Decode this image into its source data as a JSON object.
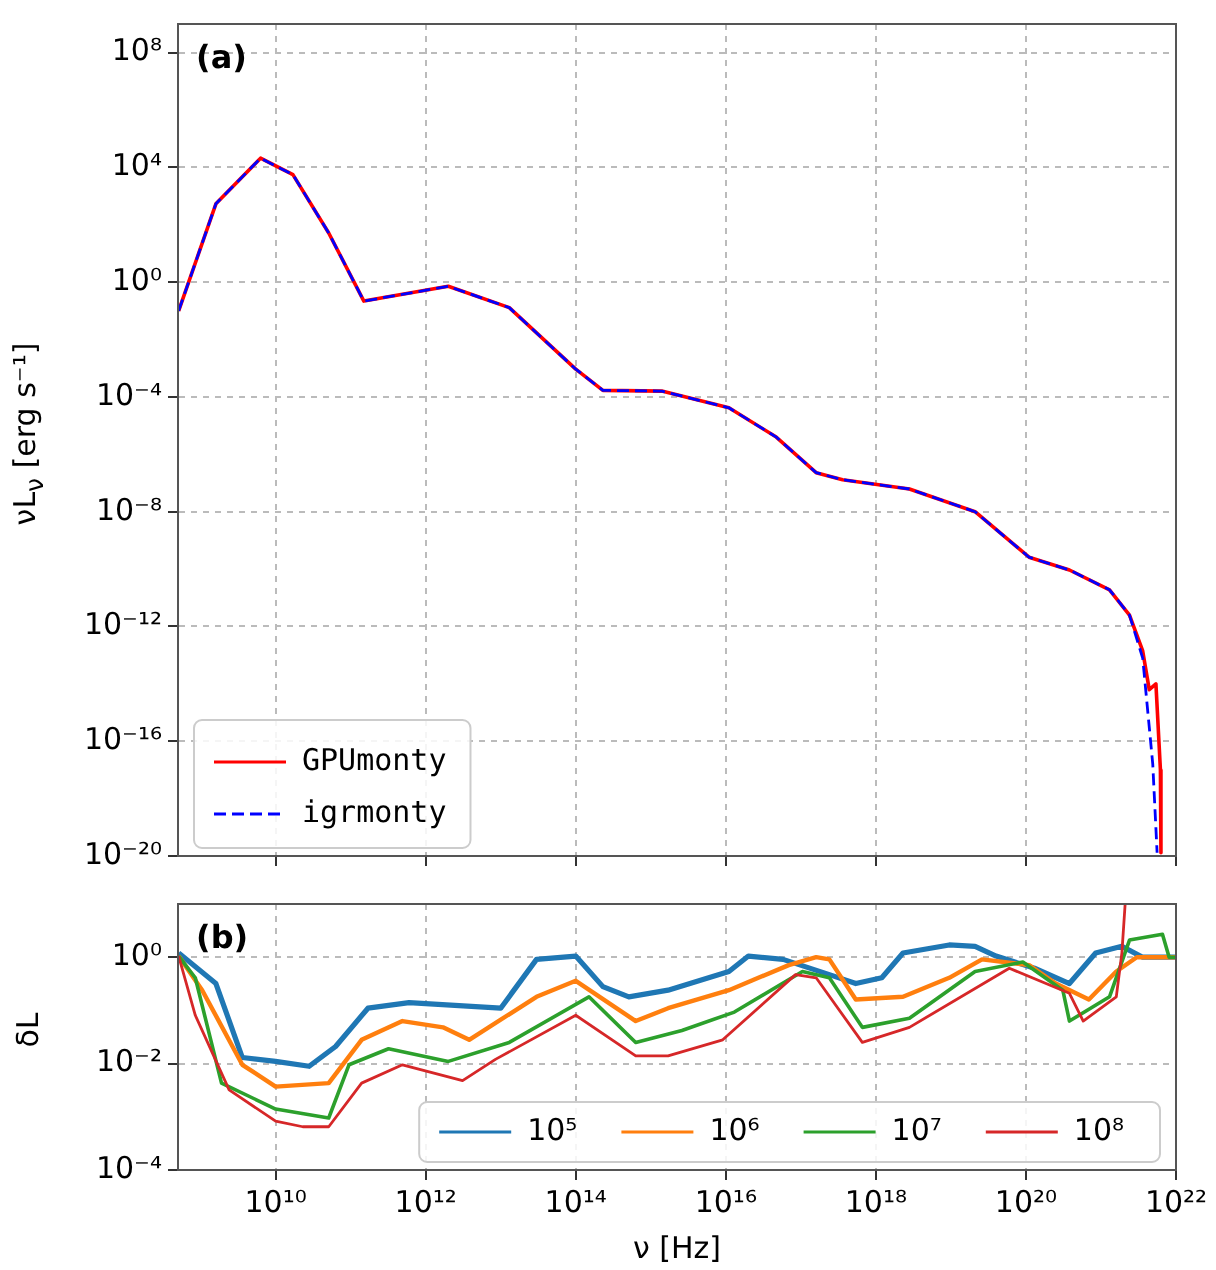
{
  "chart_data": [
    {
      "type": "line",
      "ylabel": "νL$_{ν}$ [erg s⁻¹]",
      "annotations": [
        "(a)"
      ],
      "log": "xy",
      "xlim": [
        500000000.0,
        1e+22
      ],
      "ylim": [
        1e-20,
        1000000000.0
      ],
      "xticks": [
        10000000000.0,
        1000000000000.0,
        100000000000000.0,
        1e+16,
        1e+18,
        1e+20,
        1e+22
      ],
      "yticks": [
        {
          "value": 1e-20,
          "label": "10⁻²⁰"
        },
        {
          "value": 1e-16,
          "label": "10⁻¹⁶"
        },
        {
          "value": 1e-12,
          "label": "10⁻¹²"
        },
        {
          "value": 1e-08,
          "label": "10⁻⁸"
        },
        {
          "value": 0.0001,
          "label": "10⁻⁴"
        },
        {
          "value": 1,
          "label": "10⁰"
        },
        {
          "value": 10000.0,
          "label": "10⁴"
        },
        {
          "value": 100000000.0,
          "label": "10⁸"
        }
      ],
      "tick_labels": "y",
      "grid": true,
      "legend": "bottom left",
      "series": [
        {
          "name": "GPUmonty",
          "color": "#ff0000",
          "line_style": "solid",
          "x": [
            510000000.0,
            1600000000.0,
            6300000000.0,
            17000000000.0,
            51000000000.0,
            150000000000.0,
            2000000000000.0,
            13000000000000.0,
            100000000000000.0,
            230000000000000.0,
            1400000000000000.0,
            1.1e+16,
            4.7e+16,
            1.6e+17,
            3.6e+17,
            2.8e+18,
            2.1e+19,
            1.1e+20,
            3.8e+20,
            1.3e+21,
            2.4e+21,
            3.6e+21,
            4.4e+21,
            5.4e+21,
            6.2e+21,
            6.3e+21
          ],
          "values": [
            0.1,
            540,
            21000.0,
            5600,
            52,
            0.22,
            0.72,
            0.13,
            0.00093,
            0.00017,
            0.00016,
            4.2e-05,
            4e-06,
            2.3e-07,
            1.3e-07,
            6.2e-08,
            1e-08,
            2.6e-10,
            9.3e-11,
            1.9e-11,
            2.5e-12,
            1.4e-13,
            6.3e-15,
            1e-14,
            1e-17,
            1.3e-20
          ]
        },
        {
          "name": "igrmonty",
          "color": "#0000ff",
          "line_style": "dashed",
          "x": [
            510000000.0,
            1600000000.0,
            6300000000.0,
            17000000000.0,
            51000000000.0,
            150000000000.0,
            2000000000000.0,
            13000000000000.0,
            100000000000000.0,
            230000000000000.0,
            1400000000000000.0,
            1.1e+16,
            4.7e+16,
            1.6e+17,
            3.6e+17,
            2.8e+18,
            2.1e+19,
            1.1e+20,
            3.8e+20,
            1.3e+21,
            2.4e+21,
            3.6e+21,
            4.9e+21,
            5.6e+21
          ],
          "values": [
            0.1,
            540,
            21000.0,
            5600,
            52,
            0.22,
            0.72,
            0.13,
            0.00093,
            0.00017,
            0.00016,
            4.2e-05,
            4e-06,
            2.3e-07,
            1.3e-07,
            6.2e-08,
            1e-08,
            2.6e-10,
            9.3e-11,
            1.9e-11,
            2.5e-12,
            7.9e-14,
            1.6e-17,
            1.3e-20
          ]
        }
      ]
    },
    {
      "type": "line",
      "xlabel": "ν [Hz]",
      "ylabel": "δL",
      "annotations": [
        "(b)"
      ],
      "log": "xy",
      "xlim": [
        500000000.0,
        1e+22
      ],
      "ylim": [
        0.0001,
        10
      ],
      "xticks": [
        {
          "value": 10000000000.0,
          "label": "10¹⁰"
        },
        {
          "value": 1000000000000.0,
          "label": "10¹²"
        },
        {
          "value": 100000000000000.0,
          "label": "10¹⁴"
        },
        {
          "value": 1e+16,
          "label": "10¹⁶"
        },
        {
          "value": 1e+18,
          "label": "10¹⁸"
        },
        {
          "value": 1e+20,
          "label": "10²⁰"
        },
        {
          "value": 1e+22,
          "label": "10²²"
        }
      ],
      "yticks": [
        {
          "value": 0.0001,
          "label": "10⁻⁴"
        },
        {
          "value": 0.01,
          "label": "10⁻²"
        },
        {
          "value": 1,
          "label": "10⁰"
        }
      ],
      "grid": true,
      "legend": "bottom right",
      "series": [
        {
          "name": "10⁵",
          "color": "#1f77b4",
          "x": [
            510000000.0,
            1600000000.0,
            3600000000.0,
            10000000000.0,
            28000000000.0,
            63000000000.0,
            170000000000.0,
            600000000000.0,
            10000000000000.0,
            30000000000000.0,
            100000000000000.0,
            230000000000000.0,
            510000000000000.0,
            1700000000000000.0,
            1.1e+16,
            2e+16,
            5.8e+16,
            2.4e+17,
            5.4e+17,
            1.2e+18,
            2.3e+18,
            9.5e+18,
            2.1e+19,
            4e+19,
            1.3e+20,
            3.8e+20,
            8.5e+20,
            1.9e+21,
            3.6e+21,
            1e+22
          ],
          "values": [
            1.2,
            0.32,
            0.013,
            0.011,
            0.0089,
            0.021,
            0.11,
            0.14,
            0.11,
            0.91,
            1.05,
            0.28,
            0.18,
            0.24,
            0.54,
            1.05,
            0.91,
            0.47,
            0.32,
            0.41,
            1.2,
            1.7,
            1.6,
            1.05,
            0.62,
            0.32,
            1.2,
            1.6,
            1,
            1
          ]
        },
        {
          "name": "10⁶",
          "color": "#ff7f0e",
          "x": [
            510000000.0,
            1050000000.0,
            3600000000.0,
            10000000000.0,
            51000000000.0,
            140000000000.0,
            490000000000.0,
            1700000000000.0,
            3800000000000.0,
            30000000000000.0,
            100000000000000.0,
            630000000000000.0,
            1700000000000000.0,
            1.1e+16,
            6.9e+16,
            1.6e+17,
            2.4e+17,
            5.4e+17,
            2.3e+18,
            9.5e+18,
            2.6e+19,
            1.1e+20,
            2.5e+20,
            6.9e+20,
            1.6e+21,
            3e+21,
            1e+22
          ],
          "values": [
            1.05,
            0.24,
            0.0095,
            0.0037,
            0.0043,
            0.028,
            0.063,
            0.048,
            0.028,
            0.18,
            0.36,
            0.063,
            0.11,
            0.24,
            0.71,
            1,
            0.91,
            0.16,
            0.18,
            0.41,
            0.91,
            0.71,
            0.32,
            0.16,
            0.54,
            1,
            1
          ]
        },
        {
          "name": "10⁷",
          "color": "#2ca02c",
          "x": [
            510000000.0,
            850000000.0,
            1900000000.0,
            10000000000.0,
            51000000000.0,
            95000000000.0,
            320000000000.0,
            2000000000000.0,
            13000000000000.0,
            150000000000000.0,
            630000000000000.0,
            2600000000000000.0,
            1.3e+16,
            1.05e+17,
            2.4e+17,
            6.6e+17,
            2.8e+18,
            2.1e+19,
            9.1e+19,
            3.1e+20,
            3.8e+20,
            1.3e+21,
            2.4e+21,
            6.6e+21,
            8.1e+21,
            1e+22
          ],
          "values": [
            1.05,
            0.41,
            0.0043,
            0.0014,
            0.00095,
            0.0095,
            0.019,
            0.011,
            0.025,
            0.18,
            0.025,
            0.042,
            0.093,
            0.54,
            0.41,
            0.048,
            0.071,
            0.54,
            0.81,
            0.24,
            0.063,
            0.18,
            2.1,
            2.7,
            1,
            1
          ]
        },
        {
          "name": "10⁸",
          "color": "#d62728",
          "x": [
            510000000.0,
            850000000.0,
            2400000000.0,
            10000000000.0,
            23000000000.0,
            51000000000.0,
            140000000000.0,
            490000000000.0,
            3100000000000.0,
            8500000000000.0,
            100000000000000.0,
            630000000000000.0,
            1700000000000000.0,
            9100000000000000.0,
            8.5e+16,
            1.6e+17,
            6.6e+17,
            2.8e+18,
            6e+19,
            3.8e+20,
            5.8e+20,
            1.6e+21,
            1.9e+21,
            2.1e+21
          ],
          "values": [
            1.05,
            0.081,
            0.0032,
            0.00083,
            0.00065,
            0.00065,
            0.0043,
            0.0095,
            0.0048,
            0.012,
            0.081,
            0.014,
            0.014,
            0.028,
            0.47,
            0.41,
            0.025,
            0.048,
            0.62,
            0.21,
            0.063,
            0.18,
            1.2,
            10
          ]
        }
      ]
    }
  ]
}
